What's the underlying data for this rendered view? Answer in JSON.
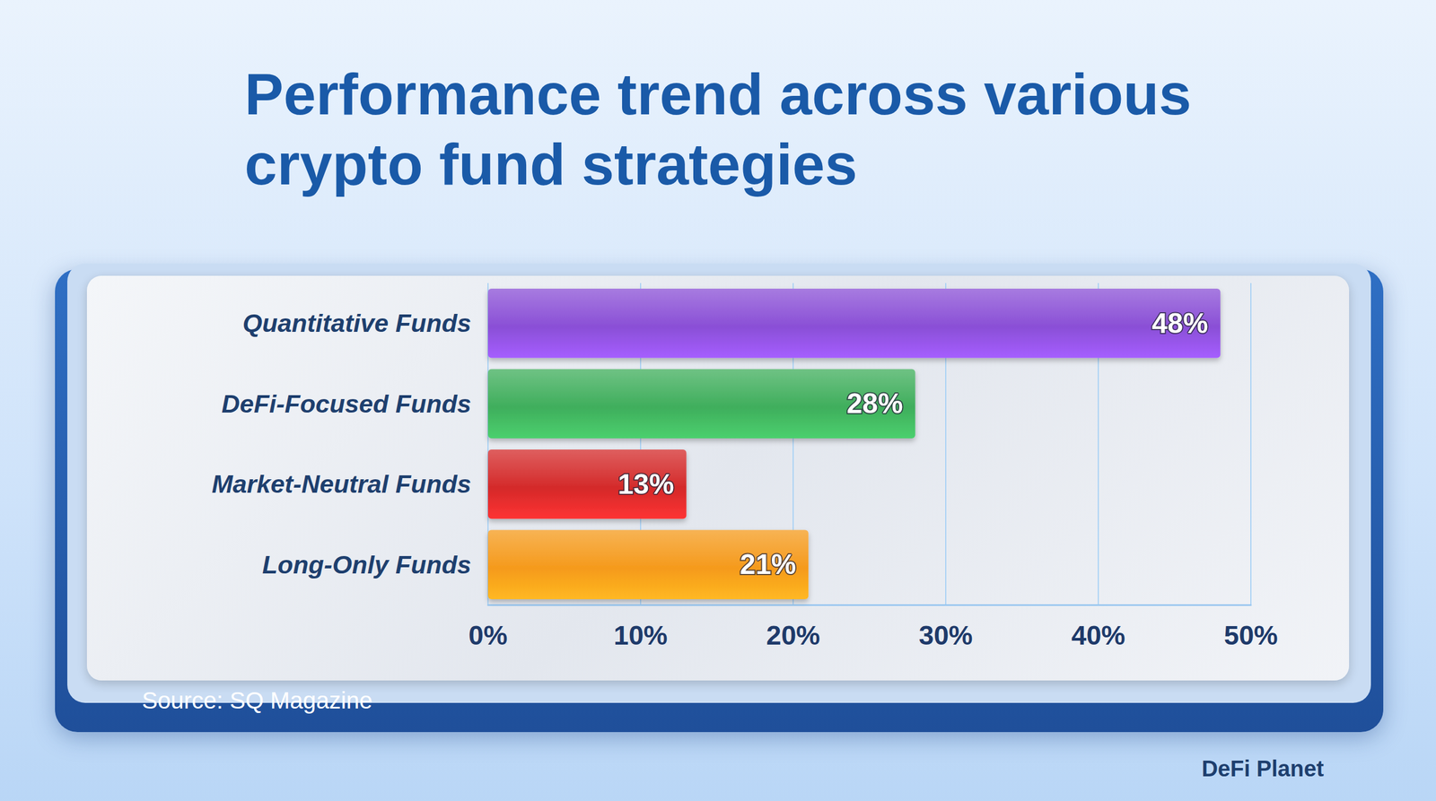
{
  "chart_data": {
    "type": "bar",
    "title": "Performance trend across various crypto fund strategies",
    "orientation": "horizontal",
    "categories": [
      "Quantitative Funds",
      "DeFi-Focused Funds",
      "Market-Neutral Funds",
      "Long-Only Funds"
    ],
    "values": [
      48,
      28,
      13,
      21
    ],
    "value_labels": [
      "48%",
      "28%",
      "13%",
      "21%"
    ],
    "colors": [
      "#8a4fd6",
      "#3fae5c",
      "#d42a2a",
      "#f59a1c"
    ],
    "xlim": [
      0,
      50
    ],
    "xticks": [
      {
        "value": 0,
        "label": "0%"
      },
      {
        "value": 10,
        "label": "10%"
      },
      {
        "value": 20,
        "label": "20%"
      },
      {
        "value": 30,
        "label": "30%"
      },
      {
        "value": 40,
        "label": "40%"
      },
      {
        "value": 50,
        "label": "50%"
      }
    ],
    "grid": true,
    "data_labels": true,
    "source": "Source: SQ Magazine",
    "credit": "DeFi Planet"
  }
}
